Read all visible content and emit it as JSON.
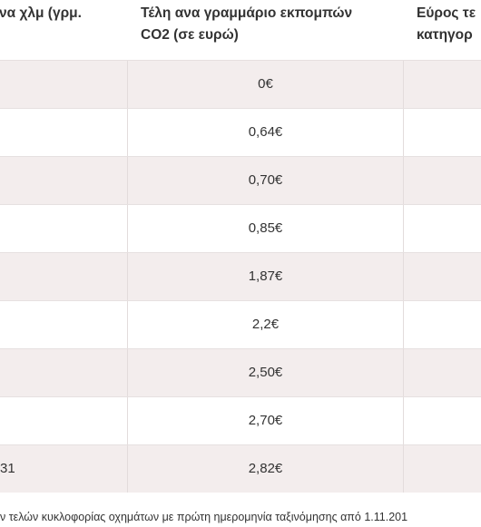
{
  "table": {
    "headers": {
      "col1": [
        "να χλμ (γρμ.",
        ""
      ],
      "col2": [
        "Τέλη ανα γραμμάριο εκπομπών",
        "CO2 (σε ευρώ)"
      ],
      "col3": [
        "Εύρος τε",
        "κατηγορ"
      ]
    },
    "rows": [
      {
        "col1": "",
        "col2": "0€",
        "shade": "shaded"
      },
      {
        "col1": "",
        "col2": "0,64€",
        "shade": "plain"
      },
      {
        "col1": "",
        "col2": "0,70€",
        "shade": "shaded"
      },
      {
        "col1": "",
        "col2": "0,85€",
        "shade": "plain"
      },
      {
        "col1": "",
        "col2": "1,87€",
        "shade": "shaded"
      },
      {
        "col1": "",
        "col2": "2,2€",
        "shade": "plain"
      },
      {
        "col1": "",
        "col2": "2,50€",
        "shade": "shaded"
      },
      {
        "col1": "",
        "col2": "2,70€",
        "shade": "plain"
      },
      {
        "col1": "31",
        "col2": "2,82€",
        "shade": "shaded"
      }
    ]
  },
  "caption": "ν τελών κυκλοφορίας οχημάτων με πρώτη ημερομηνία ταξινόμησης από 1.11.201"
}
